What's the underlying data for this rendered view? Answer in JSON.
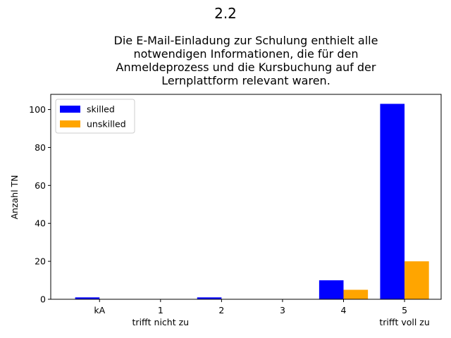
{
  "suptitle": "2.2",
  "chart_data": {
    "type": "bar",
    "title_lines": [
      "Die E-Mail-Einladung zur Schulung enthielt alle",
      "notwendigen Informationen, die für den",
      "Anmeldeprozess und die Kursbuchung auf der",
      "Lernplattform relevant waren."
    ],
    "xlabel": "",
    "ylabel": "Anzahl TN",
    "categories": [
      "kA",
      "1",
      "2",
      "3",
      "4",
      "5"
    ],
    "category_sublabels": [
      "",
      "trifft nicht zu",
      "",
      "",
      "",
      "trifft voll zu"
    ],
    "series": [
      {
        "name": "skilled",
        "color": "#0000ff",
        "values": [
          1,
          0,
          1,
          0,
          10,
          103
        ]
      },
      {
        "name": "unskilled",
        "color": "#ffa500",
        "values": [
          0,
          0,
          0,
          0,
          5,
          20
        ]
      }
    ],
    "ylim": [
      0,
      108
    ],
    "yticks": [
      0,
      20,
      40,
      60,
      80,
      100
    ],
    "legend_position": "upper-left",
    "grid": false
  }
}
